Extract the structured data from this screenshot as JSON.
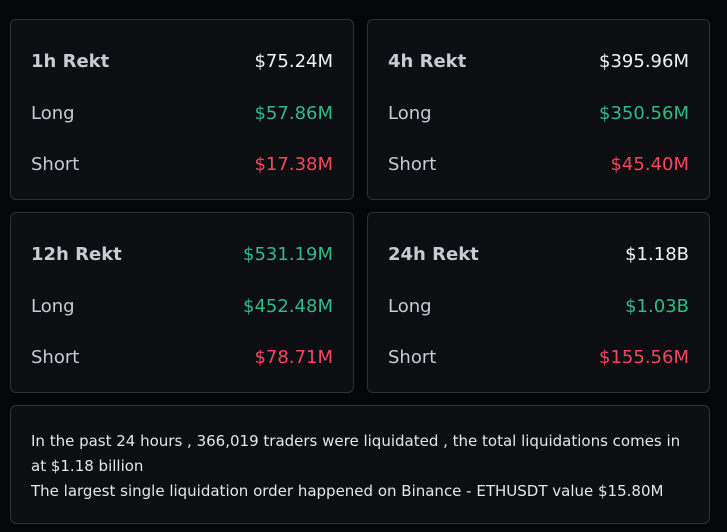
{
  "cards": [
    {
      "header_label": "1h Rekt",
      "header_value": "$75.24M",
      "long_label": "Long",
      "long_value": "$57.86M",
      "short_label": "Short",
      "short_value": "$17.38M",
      "header_value_color": "white"
    },
    {
      "header_label": "4h Rekt",
      "header_value": "$395.96M",
      "long_label": "Long",
      "long_value": "$350.56M",
      "short_label": "Short",
      "short_value": "$45.40M",
      "header_value_color": "white"
    },
    {
      "header_label": "12h Rekt",
      "header_value": "$531.19M",
      "long_label": "Long",
      "long_value": "$452.48M",
      "short_label": "Short",
      "short_value": "$78.71M",
      "header_value_color": "green"
    },
    {
      "header_label": "24h Rekt",
      "header_value": "$1.18B",
      "long_label": "Long",
      "long_value": "$1.03B",
      "short_label": "Short",
      "short_value": "$155.56M",
      "header_value_color": "white"
    }
  ],
  "summary": {
    "line1": "In the past 24 hours , 366,019 traders were liquidated , the total liquidations comes in at $1.18 billion",
    "line2": "The largest single liquidation order happened on Binance - ETHUSDT value $15.80M"
  },
  "colors": {
    "background": "#050608",
    "card_background": "#0c0e12",
    "card_border": "#2b3139",
    "green": "#2ebd85",
    "red": "#f6465d",
    "white": "#f0f2f5",
    "label": "#c7ccd3"
  }
}
